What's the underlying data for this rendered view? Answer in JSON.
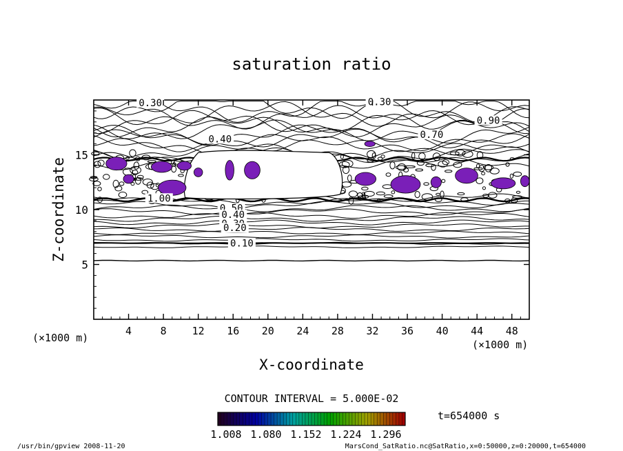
{
  "chart_data": {
    "type": "contour",
    "title": "saturation ratio",
    "xlabel": "X-coordinate",
    "ylabel": "Z-coordinate",
    "x_unit": "(×1000 m)",
    "z_unit": "(×1000 m)",
    "xlim": [
      0,
      50
    ],
    "zlim": [
      0,
      20
    ],
    "x_ticks": [
      4,
      8,
      12,
      16,
      20,
      24,
      28,
      32,
      36,
      40,
      44,
      48
    ],
    "z_ticks": [
      5,
      10,
      15
    ],
    "contour_labels": [
      {
        "text": "0.30",
        "x": 6.5,
        "z": 19.5
      },
      {
        "text": "0.30",
        "x": 32.8,
        "z": 19.6
      },
      {
        "text": "0.70",
        "x": 38.8,
        "z": 16.6
      },
      {
        "text": "0.90",
        "x": 45.3,
        "z": 17.9
      },
      {
        "text": "0.40",
        "x": 14.5,
        "z": 16.2
      },
      {
        "text": "1.00",
        "x": 7.5,
        "z": 10.8
      },
      {
        "text": "0.50",
        "x": 15.8,
        "z": 9.9
      },
      {
        "text": "0.40",
        "x": 16.0,
        "z": 9.3
      },
      {
        "text": "0.30",
        "x": 16.0,
        "z": 8.5
      },
      {
        "text": "0.20",
        "x": 16.2,
        "z": 8.1
      },
      {
        "text": "0.10",
        "x": 17.0,
        "z": 6.7
      }
    ],
    "contour_interval_text": "CONTOUR INTERVAL = 5.000E-02",
    "time_text": "t=654000 s",
    "colorbar": {
      "min": 1.008,
      "max": 1.296,
      "ticks": [
        "1.008",
        "1.080",
        "1.152",
        "1.224",
        "1.296"
      ],
      "colors": [
        "#200020",
        "#0000a0",
        "#00a0a0",
        "#00a000",
        "#a0a000",
        "#a00000"
      ]
    },
    "fill_color": "#7a1fb8",
    "footer_left": "/usr/bin/gpview   2008-11-20",
    "footer_right": "MarsCond_SatRatio.nc@SatRatio,x=0:50000,z=0:20000,t=654000"
  }
}
